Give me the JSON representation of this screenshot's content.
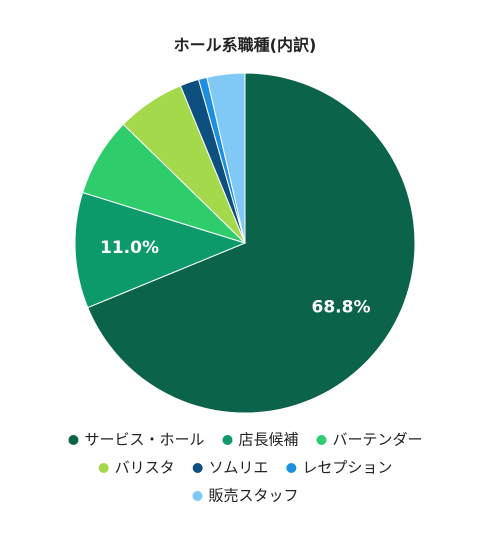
{
  "chart_data": {
    "type": "pie",
    "title": "ホール系職種(内訳)",
    "categories": [
      "サービス・ホール",
      "店長候補",
      "バーテンダー",
      "バリスタ",
      "ソムリエ",
      "レセプション",
      "販売スタッフ"
    ],
    "values": [
      68.8,
      11.0,
      7.5,
      6.5,
      1.8,
      0.8,
      3.6
    ],
    "value_labels": [
      "68.8%",
      "11.0%",
      null,
      null,
      null,
      null,
      null
    ],
    "colors": [
      "#0b6449",
      "#0c9a6a",
      "#2ecc6a",
      "#a3d94a",
      "#0d4f7f",
      "#1e8fe0",
      "#80c8f5"
    ],
    "legend": "bottom"
  }
}
